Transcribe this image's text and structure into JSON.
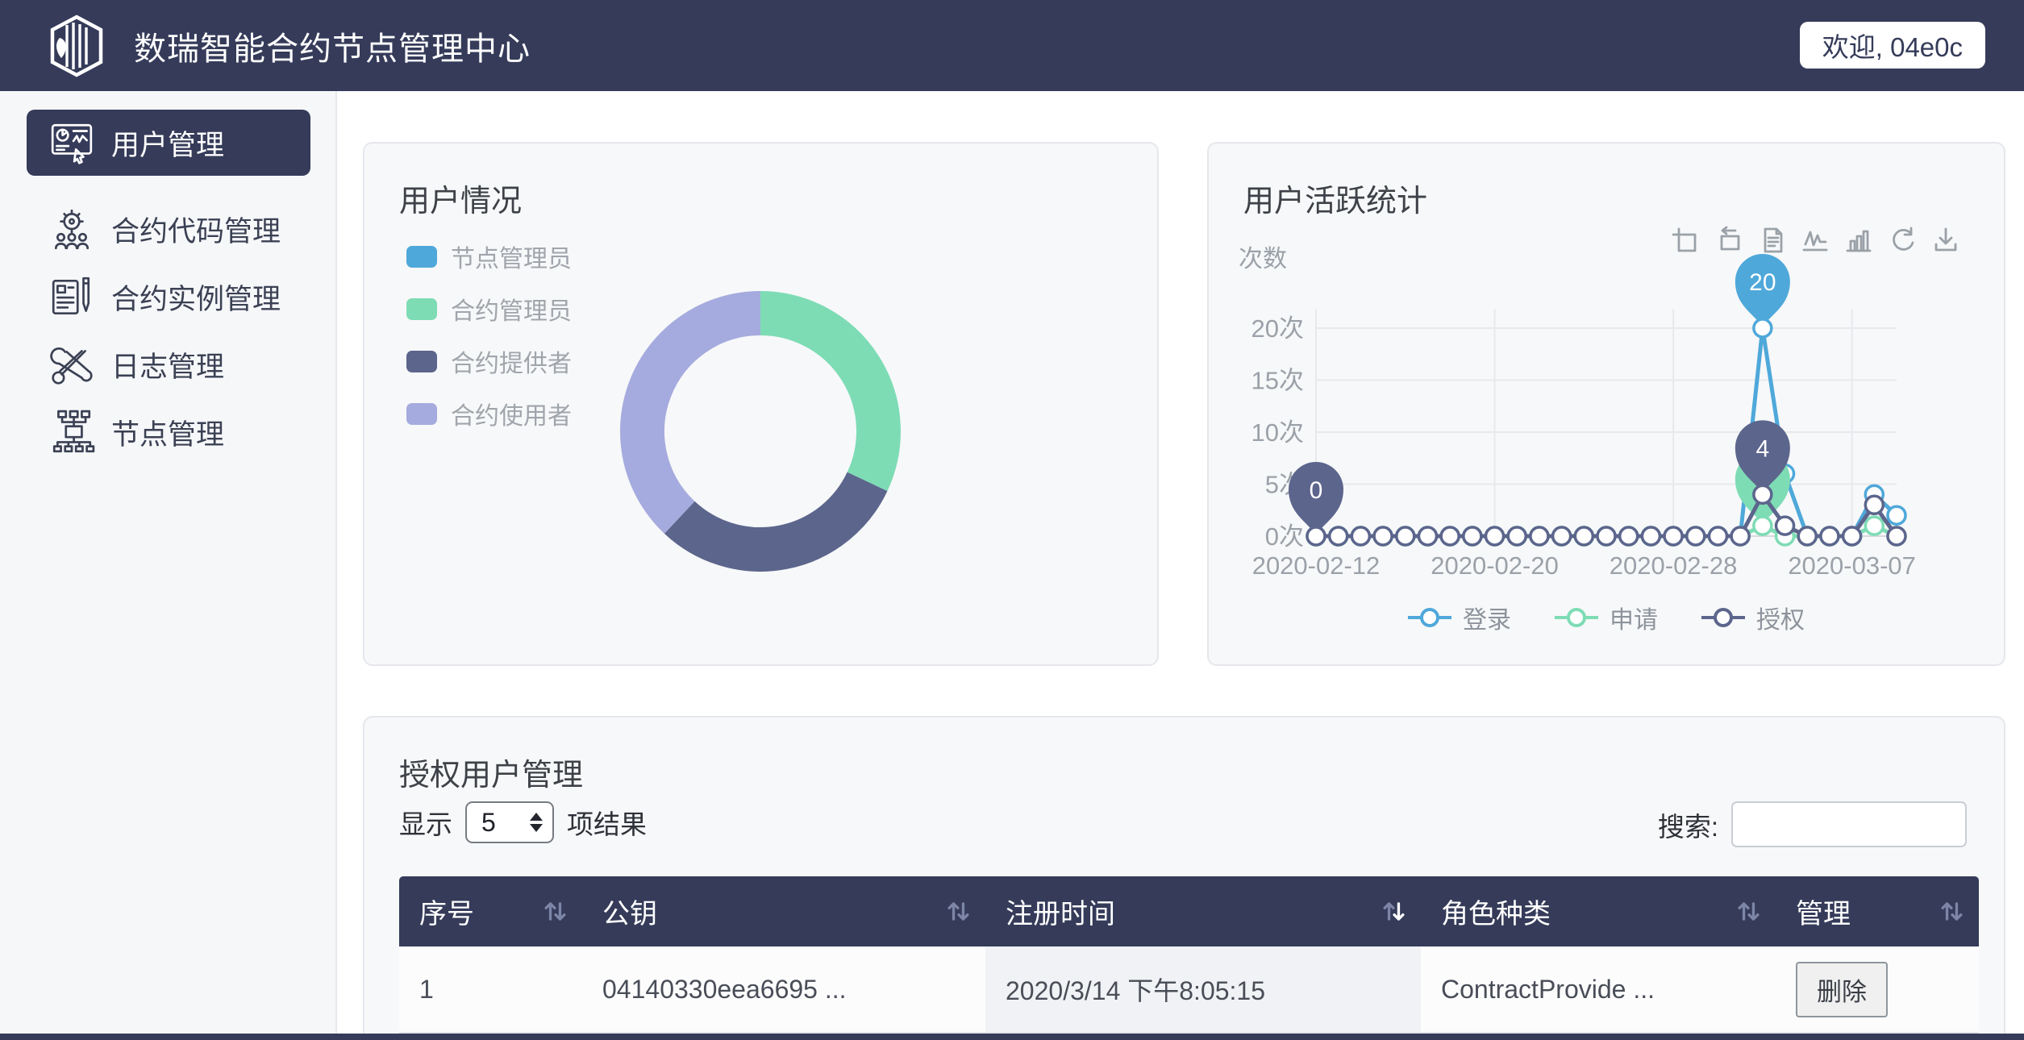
{
  "header": {
    "title": "数瑞智能合约节点管理中心",
    "welcome": "欢迎, 04e0c",
    "logo": "cube-book-logo"
  },
  "sidebar": {
    "items": [
      {
        "label": "用户管理",
        "icon": "user-dashboard-icon",
        "active": true
      },
      {
        "label": "合约代码管理",
        "icon": "contract-code-icon",
        "active": false
      },
      {
        "label": "合约实例管理",
        "icon": "contract-instance-icon",
        "active": false
      },
      {
        "label": "日志管理",
        "icon": "log-tools-icon",
        "active": false
      },
      {
        "label": "节点管理",
        "icon": "node-network-icon",
        "active": false
      }
    ]
  },
  "user_panel": {
    "title": "用户情况"
  },
  "activity_panel": {
    "title": "用户活跃统计",
    "y_unit": "次数",
    "toolbar": [
      "data-zoom",
      "data-zoom-reset",
      "data-view",
      "switch-to-line",
      "switch-to-bar",
      "restore",
      "save-as-image"
    ]
  },
  "table": {
    "title": "授权用户管理",
    "show_label": "显示",
    "page_size": "5",
    "results_label": "项结果",
    "search_label": "搜索:",
    "search_value": "",
    "columns": [
      "序号",
      "公钥",
      "注册时间",
      "角色种类",
      "管理"
    ],
    "sort": {
      "column_index": 2,
      "direction": "desc"
    },
    "rows": [
      {
        "index": "1",
        "public_key": "04140330eea6695 ...",
        "register_time": "2020/3/14 下午8:05:15",
        "role": "ContractProvide ...",
        "action": "删除"
      }
    ]
  },
  "chart_data": [
    {
      "type": "pie",
      "subtype": "donut",
      "title": "用户情况",
      "labels": [
        "节点管理员",
        "合约管理员",
        "合约提供者",
        "合约使用者"
      ],
      "values": [
        0,
        32,
        30,
        38
      ],
      "unit": "percent (estimated from arc angles)",
      "colors": [
        "#4fa8da",
        "#7edcb5",
        "#5c658c",
        "#a5abde"
      ],
      "legend_position": "left"
    },
    {
      "type": "line",
      "title": "用户活跃统计",
      "ylabel": "次数",
      "ylim": [
        0,
        20
      ],
      "yticks": [
        "0次",
        "5次",
        "10次",
        "15次",
        "20次"
      ],
      "ytick_values": [
        0,
        5,
        10,
        15,
        20
      ],
      "x": [
        "2020-02-12",
        "2020-02-13",
        "2020-02-14",
        "2020-02-15",
        "2020-02-16",
        "2020-02-17",
        "2020-02-18",
        "2020-02-19",
        "2020-02-20",
        "2020-02-21",
        "2020-02-22",
        "2020-02-23",
        "2020-02-24",
        "2020-02-25",
        "2020-02-26",
        "2020-02-27",
        "2020-02-28",
        "2020-02-29",
        "2020-03-01",
        "2020-03-02",
        "2020-03-03",
        "2020-03-04",
        "2020-03-05",
        "2020-03-06",
        "2020-03-07",
        "2020-03-08",
        "2020-03-09"
      ],
      "x_tick_indices": [
        0,
        8,
        16,
        24
      ],
      "series": [
        {
          "name": "登录",
          "color": "#4fa8da",
          "values": [
            0,
            0,
            0,
            0,
            0,
            0,
            0,
            0,
            0,
            0,
            0,
            0,
            0,
            0,
            0,
            0,
            0,
            0,
            0,
            0,
            20,
            6,
            0,
            0,
            0,
            4,
            2
          ]
        },
        {
          "name": "申请",
          "color": "#7edcb5",
          "values": [
            0,
            0,
            0,
            0,
            0,
            0,
            0,
            0,
            0,
            0,
            0,
            0,
            0,
            0,
            0,
            0,
            0,
            0,
            0,
            0,
            1,
            0,
            0,
            0,
            0,
            1,
            0
          ]
        },
        {
          "name": "授权",
          "color": "#5c658c",
          "values": [
            0,
            0,
            0,
            0,
            0,
            0,
            0,
            0,
            0,
            0,
            0,
            0,
            0,
            0,
            0,
            0,
            0,
            0,
            0,
            0,
            4,
            1,
            0,
            0,
            0,
            3,
            0
          ]
        }
      ],
      "annotations": [
        {
          "series": "登录",
          "x": "2020-03-03",
          "value": 20,
          "label": "20"
        },
        {
          "series": "申请",
          "x": "2020-03-03",
          "value": 1,
          "label": ""
        },
        {
          "series": "授权",
          "x": "2020-02-12",
          "value": 0,
          "label": "0"
        },
        {
          "series": "授权",
          "x": "2020-03-03",
          "value": 4,
          "label": "4"
        }
      ],
      "legend_position": "bottom",
      "grid": true
    }
  ]
}
